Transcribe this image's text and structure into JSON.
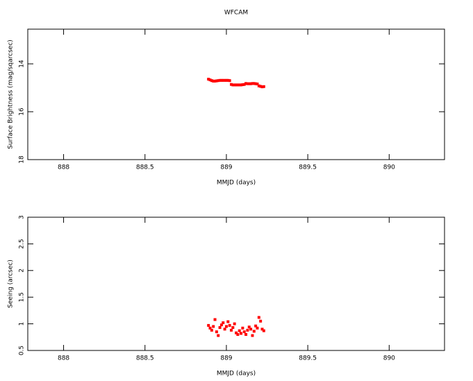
{
  "chart_data": [
    {
      "type": "scatter",
      "title": "WFCAM",
      "x_label": "MMJD (days)",
      "y_label": "Surface Brightness (mag/sqarcsec)",
      "xlim": [
        887.78,
        890.34
      ],
      "xticks": [
        888,
        888.5,
        889,
        889.5,
        890
      ],
      "ylim": [
        12.55,
        18
      ],
      "yticks": [
        14,
        16,
        18
      ],
      "y_inverted": true,
      "color": "#ff0000",
      "x": [
        888.89,
        888.9,
        888.91,
        888.92,
        888.93,
        888.94,
        888.95,
        888.96,
        888.97,
        888.98,
        888.99,
        889.0,
        889.01,
        889.02,
        889.03,
        889.04,
        889.05,
        889.06,
        889.07,
        889.08,
        889.09,
        889.1,
        889.11,
        889.12,
        889.13,
        889.14,
        889.15,
        889.16,
        889.17,
        889.18,
        889.19,
        889.2,
        889.21,
        889.22,
        889.23
      ],
      "values": [
        14.64,
        14.67,
        14.7,
        14.72,
        14.72,
        14.71,
        14.7,
        14.69,
        14.69,
        14.69,
        14.69,
        14.69,
        14.69,
        14.7,
        14.86,
        14.88,
        14.88,
        14.88,
        14.88,
        14.88,
        14.88,
        14.87,
        14.86,
        14.82,
        14.83,
        14.83,
        14.83,
        14.82,
        14.82,
        14.83,
        14.84,
        14.92,
        14.94,
        14.96,
        14.95
      ]
    },
    {
      "type": "scatter",
      "x_label": "MMJD (days)",
      "y_label": "Seeing (arcsec)",
      "xlim": [
        887.78,
        890.34
      ],
      "xticks": [
        888,
        888.5,
        889,
        889.5,
        890
      ],
      "ylim": [
        0.5,
        3
      ],
      "yticks": [
        0.5,
        1,
        1.5,
        2,
        2.5,
        3
      ],
      "y_inverted": false,
      "color": "#ff0000",
      "x": [
        888.89,
        888.9,
        888.91,
        888.92,
        888.93,
        888.94,
        888.95,
        888.96,
        888.97,
        888.98,
        888.99,
        889.0,
        889.01,
        889.02,
        889.03,
        889.04,
        889.05,
        889.06,
        889.07,
        889.08,
        889.09,
        889.1,
        889.11,
        889.12,
        889.13,
        889.14,
        889.15,
        889.16,
        889.17,
        889.18,
        889.19,
        889.2,
        889.21,
        889.22,
        889.23
      ],
      "values": [
        0.97,
        0.92,
        0.88,
        0.95,
        1.08,
        0.85,
        0.78,
        0.93,
        0.98,
        1.02,
        0.9,
        0.95,
        1.04,
        0.97,
        0.88,
        0.93,
        1.0,
        0.83,
        0.8,
        0.87,
        0.82,
        0.92,
        0.85,
        0.8,
        0.88,
        0.94,
        0.9,
        0.78,
        0.86,
        0.96,
        0.92,
        1.12,
        1.05,
        0.9,
        0.87
      ]
    }
  ]
}
